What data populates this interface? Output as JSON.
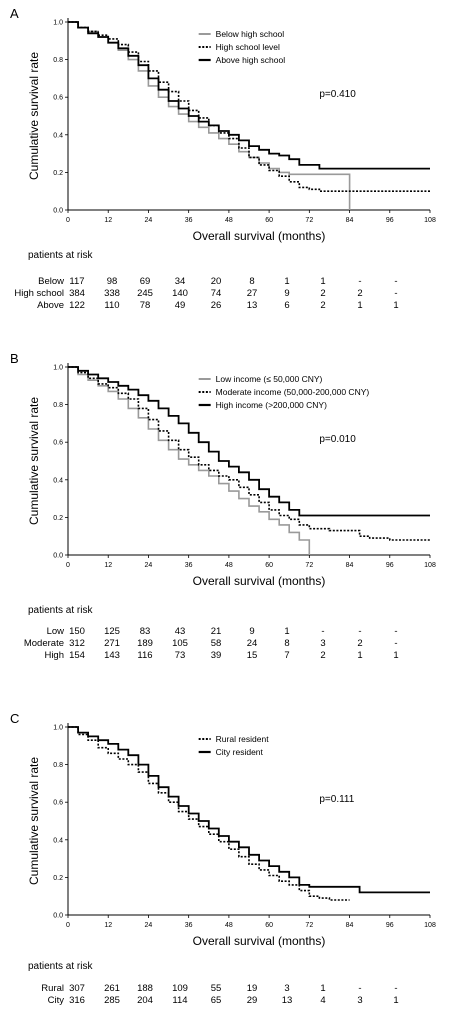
{
  "panels": [
    {
      "letter": "A",
      "p_value": "p=0.410",
      "risk_title": "patients at risk",
      "risk_rows": [
        {
          "label": "Below",
          "values": [
            "117",
            "98",
            "69",
            "34",
            "20",
            "8",
            "1",
            "1",
            "-",
            "-"
          ]
        },
        {
          "label": "High school",
          "values": [
            "384",
            "338",
            "245",
            "140",
            "74",
            "27",
            "9",
            "2",
            "2",
            "-"
          ]
        },
        {
          "label": "Above",
          "values": [
            "122",
            "110",
            "78",
            "49",
            "26",
            "13",
            "6",
            "2",
            "1",
            "1"
          ]
        }
      ]
    },
    {
      "letter": "B",
      "p_value": "p=0.010",
      "risk_title": "patients at risk",
      "risk_rows": [
        {
          "label": "Low",
          "values": [
            "150",
            "125",
            "83",
            "43",
            "21",
            "9",
            "1",
            "-",
            "-",
            "-"
          ]
        },
        {
          "label": "Moderate",
          "values": [
            "312",
            "271",
            "189",
            "105",
            "58",
            "24",
            "8",
            "3",
            "2",
            "-"
          ]
        },
        {
          "label": "High",
          "values": [
            "154",
            "143",
            "116",
            "73",
            "39",
            "15",
            "7",
            "2",
            "1",
            "1"
          ]
        }
      ]
    },
    {
      "letter": "C",
      "p_value": "p=0.111",
      "risk_title": "patients at risk",
      "risk_rows": [
        {
          "label": "Rural",
          "values": [
            "307",
            "261",
            "188",
            "109",
            "55",
            "19",
            "3",
            "1",
            "-",
            "-"
          ]
        },
        {
          "label": "City",
          "values": [
            "316",
            "285",
            "204",
            "114",
            "65",
            "29",
            "13",
            "4",
            "3",
            "1"
          ]
        }
      ]
    }
  ],
  "chart_data": [
    {
      "type": "line",
      "title": "",
      "xlabel": "Overall survival (months)",
      "ylabel": "Cumulative survival rate",
      "xlim": [
        0,
        108
      ],
      "ylim": [
        0,
        1.0
      ],
      "xticks": [
        0,
        12,
        24,
        36,
        48,
        60,
        72,
        84,
        96,
        108
      ],
      "yticks": [
        0.0,
        0.2,
        0.4,
        0.6,
        0.8,
        1.0
      ],
      "tick_labels_x": [
        "0",
        "12",
        "24",
        "36",
        "48",
        "60",
        "72",
        "84",
        "96",
        "108"
      ],
      "tick_labels_y": [
        "0.0",
        "0.2",
        "0.4",
        "0.6",
        "0.8",
        "1.0"
      ],
      "grid": false,
      "legend_position": "top-right",
      "series": [
        {
          "name": "Below high school",
          "style": "solid",
          "color": "#9a9a9a",
          "x": [
            0,
            3,
            6,
            9,
            12,
            15,
            18,
            21,
            24,
            27,
            30,
            33,
            36,
            39,
            42,
            45,
            48,
            51,
            54,
            57,
            60,
            63,
            66,
            69,
            72,
            75,
            78,
            81,
            84,
            84
          ],
          "y": [
            1.0,
            0.97,
            0.95,
            0.92,
            0.89,
            0.85,
            0.8,
            0.74,
            0.66,
            0.6,
            0.55,
            0.51,
            0.47,
            0.44,
            0.41,
            0.38,
            0.35,
            0.31,
            0.28,
            0.25,
            0.22,
            0.2,
            0.19,
            0.19,
            0.19,
            0.19,
            0.19,
            0.19,
            0.19,
            0.0
          ]
        },
        {
          "name": "High school level",
          "style": "dotted",
          "color": "#000000",
          "x": [
            0,
            3,
            6,
            9,
            12,
            15,
            18,
            21,
            24,
            27,
            30,
            33,
            36,
            39,
            42,
            45,
            48,
            51,
            54,
            57,
            60,
            63,
            66,
            69,
            72,
            75,
            78,
            81,
            84,
            90,
            96,
            108
          ],
          "y": [
            1.0,
            0.97,
            0.95,
            0.93,
            0.91,
            0.88,
            0.84,
            0.79,
            0.74,
            0.68,
            0.63,
            0.58,
            0.53,
            0.49,
            0.45,
            0.41,
            0.38,
            0.33,
            0.28,
            0.24,
            0.21,
            0.18,
            0.15,
            0.12,
            0.11,
            0.1,
            0.1,
            0.1,
            0.1,
            0.1,
            0.1,
            0.1
          ]
        },
        {
          "name": "Above high school",
          "style": "solid",
          "color": "#000000",
          "x": [
            0,
            3,
            6,
            9,
            12,
            15,
            18,
            21,
            24,
            27,
            30,
            33,
            36,
            39,
            42,
            45,
            48,
            51,
            54,
            57,
            60,
            63,
            66,
            69,
            72,
            75,
            78,
            81,
            84,
            96,
            108
          ],
          "y": [
            1.0,
            0.97,
            0.94,
            0.92,
            0.89,
            0.86,
            0.82,
            0.77,
            0.7,
            0.64,
            0.58,
            0.54,
            0.5,
            0.47,
            0.45,
            0.42,
            0.4,
            0.37,
            0.34,
            0.32,
            0.3,
            0.29,
            0.27,
            0.24,
            0.24,
            0.22,
            0.22,
            0.22,
            0.22,
            0.22,
            0.22
          ]
        }
      ]
    },
    {
      "type": "line",
      "title": "",
      "xlabel": "Overall survival (months)",
      "ylabel": "Cumulative survival rate",
      "xlim": [
        0,
        108
      ],
      "ylim": [
        0,
        1.0
      ],
      "xticks": [
        0,
        12,
        24,
        36,
        48,
        60,
        72,
        84,
        96,
        108
      ],
      "yticks": [
        0.0,
        0.2,
        0.4,
        0.6,
        0.8,
        1.0
      ],
      "tick_labels_x": [
        "0",
        "12",
        "24",
        "36",
        "48",
        "60",
        "72",
        "84",
        "96",
        "108"
      ],
      "tick_labels_y": [
        "0.0",
        "0.2",
        "0.4",
        "0.6",
        "0.8",
        "1.0"
      ],
      "grid": false,
      "legend_position": "top-right",
      "series": [
        {
          "name": "Low income (≤ 50,000 CNY)",
          "style": "solid",
          "color": "#9a9a9a",
          "x": [
            0,
            3,
            6,
            9,
            12,
            15,
            18,
            21,
            24,
            27,
            30,
            33,
            36,
            39,
            42,
            45,
            48,
            51,
            54,
            57,
            60,
            63,
            66,
            69,
            72,
            72
          ],
          "y": [
            1.0,
            0.96,
            0.93,
            0.9,
            0.87,
            0.83,
            0.78,
            0.73,
            0.67,
            0.61,
            0.56,
            0.51,
            0.48,
            0.45,
            0.42,
            0.38,
            0.34,
            0.3,
            0.26,
            0.23,
            0.19,
            0.16,
            0.12,
            0.08,
            0.06,
            0.0
          ]
        },
        {
          "name": "Moderate income  (50,000-200,000 CNY)",
          "style": "dotted",
          "color": "#000000",
          "x": [
            0,
            3,
            6,
            9,
            12,
            15,
            18,
            21,
            24,
            27,
            30,
            33,
            36,
            39,
            42,
            45,
            48,
            51,
            54,
            57,
            60,
            63,
            66,
            69,
            72,
            75,
            78,
            81,
            84,
            87,
            90,
            96,
            108
          ],
          "y": [
            1.0,
            0.97,
            0.94,
            0.91,
            0.89,
            0.86,
            0.83,
            0.78,
            0.72,
            0.66,
            0.61,
            0.56,
            0.52,
            0.48,
            0.45,
            0.42,
            0.4,
            0.36,
            0.32,
            0.28,
            0.24,
            0.21,
            0.19,
            0.16,
            0.14,
            0.14,
            0.13,
            0.13,
            0.13,
            0.1,
            0.09,
            0.08,
            0.08
          ]
        },
        {
          "name": "High income (>200,000 CNY)",
          "style": "solid",
          "color": "#000000",
          "x": [
            0,
            3,
            6,
            9,
            12,
            15,
            18,
            21,
            24,
            27,
            30,
            33,
            36,
            39,
            42,
            45,
            48,
            51,
            54,
            57,
            60,
            63,
            66,
            69,
            72,
            75,
            78,
            84,
            96,
            108
          ],
          "y": [
            1.0,
            0.98,
            0.96,
            0.94,
            0.92,
            0.9,
            0.88,
            0.85,
            0.82,
            0.78,
            0.74,
            0.7,
            0.65,
            0.6,
            0.55,
            0.5,
            0.47,
            0.44,
            0.4,
            0.35,
            0.31,
            0.28,
            0.24,
            0.21,
            0.21,
            0.21,
            0.21,
            0.21,
            0.21,
            0.21
          ]
        }
      ]
    },
    {
      "type": "line",
      "title": "",
      "xlabel": "Overall survival (months)",
      "ylabel": "Cumulative survival rate",
      "xlim": [
        0,
        108
      ],
      "ylim": [
        0,
        1.0
      ],
      "xticks": [
        0,
        12,
        24,
        36,
        48,
        60,
        72,
        84,
        96,
        108
      ],
      "yticks": [
        0.0,
        0.2,
        0.4,
        0.6,
        0.8,
        1.0
      ],
      "tick_labels_x": [
        "0",
        "12",
        "24",
        "36",
        "48",
        "60",
        "72",
        "84",
        "96",
        "108"
      ],
      "tick_labels_y": [
        "0.0",
        "0.2",
        "0.4",
        "0.6",
        "0.8",
        "1.0"
      ],
      "grid": false,
      "legend_position": "top-right",
      "series": [
        {
          "name": "Rural resident",
          "style": "dotted",
          "color": "#000000",
          "x": [
            0,
            3,
            6,
            9,
            12,
            15,
            18,
            21,
            24,
            27,
            30,
            33,
            36,
            39,
            42,
            45,
            48,
            51,
            54,
            57,
            60,
            63,
            66,
            69,
            72,
            75,
            78,
            81,
            84
          ],
          "y": [
            1.0,
            0.96,
            0.93,
            0.89,
            0.86,
            0.83,
            0.8,
            0.76,
            0.7,
            0.65,
            0.6,
            0.55,
            0.51,
            0.47,
            0.43,
            0.39,
            0.35,
            0.31,
            0.27,
            0.24,
            0.21,
            0.18,
            0.16,
            0.13,
            0.1,
            0.09,
            0.08,
            0.08,
            0.08
          ]
        },
        {
          "name": "City resident",
          "style": "solid",
          "color": "#000000",
          "x": [
            0,
            3,
            6,
            9,
            12,
            15,
            18,
            21,
            24,
            27,
            30,
            33,
            36,
            39,
            42,
            45,
            48,
            51,
            54,
            57,
            60,
            63,
            66,
            69,
            72,
            75,
            78,
            81,
            84,
            87,
            96,
            108
          ],
          "y": [
            1.0,
            0.97,
            0.95,
            0.93,
            0.91,
            0.88,
            0.85,
            0.8,
            0.74,
            0.68,
            0.63,
            0.58,
            0.54,
            0.5,
            0.46,
            0.42,
            0.39,
            0.36,
            0.32,
            0.29,
            0.26,
            0.23,
            0.2,
            0.16,
            0.15,
            0.15,
            0.15,
            0.15,
            0.15,
            0.12,
            0.12,
            0.12
          ]
        }
      ]
    }
  ]
}
